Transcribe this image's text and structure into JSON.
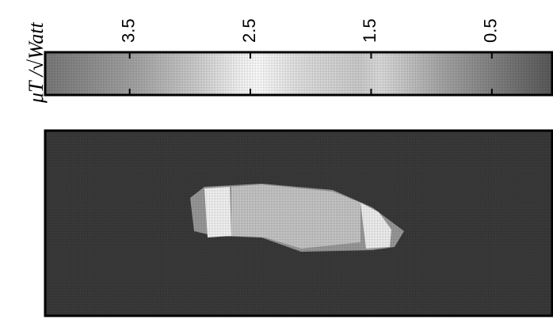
{
  "chart_data": {
    "type": "heatmap",
    "colorbar": {
      "label": "μT /√Watt",
      "lim": [
        4.2,
        0
      ],
      "ticks": [
        3.5,
        2.5,
        1.5,
        0.5
      ]
    }
  }
}
